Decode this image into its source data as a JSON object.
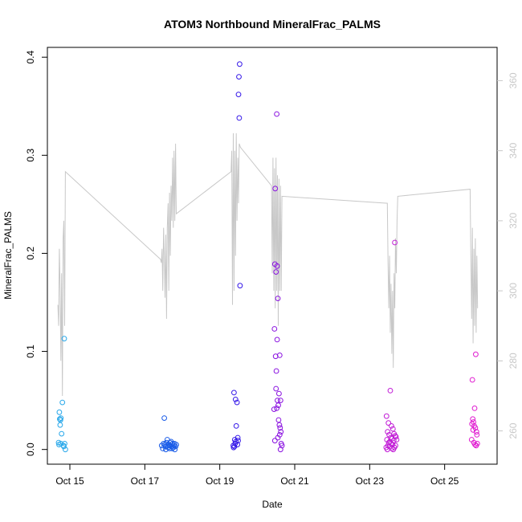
{
  "chart_data": {
    "type": "scatter",
    "title": "ATOM3 Northbound MineralFrac_PALMS",
    "xlabel": "Date",
    "ylabel": "MineralFrac_PALMS",
    "x_unit": "days (Oct 2017)",
    "xlim": [
      14.4,
      26.4
    ],
    "ylim": [
      -0.015,
      0.41
    ],
    "y2lim": [
      250.5,
      369.5
    ],
    "x_tick_labels": [
      "Oct 15",
      "Oct 17",
      "Oct 19",
      "Oct 21",
      "Oct 23",
      "Oct 25"
    ],
    "x_ticks": [
      15,
      17,
      19,
      21,
      23,
      25
    ],
    "y_ticks": [
      0.0,
      0.1,
      0.2,
      0.3,
      0.4
    ],
    "y_tick_labels": [
      "0.0",
      "0.1",
      "0.2",
      "0.3",
      "0.4"
    ],
    "y2_ticks": [
      260,
      280,
      300,
      320,
      340,
      360
    ],
    "y2_tick_labels": [
      "260",
      "280",
      "300",
      "320",
      "340",
      "360"
    ],
    "grid": false,
    "colors": {
      "axis": "#000000",
      "right_axis": "#c8c8c8",
      "line": "#c8c8c8"
    },
    "series": [
      {
        "color": "#29a8ea",
        "points": [
          [
            14.72,
            0.038
          ],
          [
            14.73,
            0.031
          ],
          [
            14.75,
            0.03
          ],
          [
            14.76,
            0.032
          ],
          [
            14.74,
            0.025
          ],
          [
            14.78,
            0.016
          ],
          [
            14.8,
            0.048
          ],
          [
            14.71,
            0.005
          ],
          [
            14.76,
            0.006
          ],
          [
            14.83,
            0.004
          ],
          [
            14.86,
            0.006
          ],
          [
            14.88,
            0.0
          ],
          [
            14.85,
            0.113
          ],
          [
            14.84,
            0.003
          ],
          [
            14.7,
            0.007
          ]
        ]
      },
      {
        "color": "#1a5ce8",
        "points": [
          [
            17.52,
            0.032
          ],
          [
            17.45,
            0.004
          ],
          [
            17.5,
            0.006
          ],
          [
            17.55,
            0.003
          ],
          [
            17.58,
            0.007
          ],
          [
            17.6,
            0.01
          ],
          [
            17.62,
            0.002
          ],
          [
            17.64,
            0.005
          ],
          [
            17.66,
            0.001
          ],
          [
            17.68,
            0.004
          ],
          [
            17.7,
            0.008
          ],
          [
            17.72,
            0.003
          ],
          [
            17.74,
            0.006
          ],
          [
            17.76,
            0.002
          ],
          [
            17.78,
            0.004
          ],
          [
            17.8,
            0.0
          ],
          [
            17.82,
            0.003
          ],
          [
            17.84,
            0.005
          ],
          [
            17.48,
            0.001
          ],
          [
            17.56,
            0.0
          ],
          [
            17.61,
            0.004
          ],
          [
            17.67,
            0.007
          ],
          [
            17.73,
            0.001
          ],
          [
            17.79,
            0.006
          ],
          [
            17.53,
            0.005
          ]
        ]
      },
      {
        "color": "#3518e8",
        "points": [
          [
            19.53,
            0.393
          ],
          [
            19.51,
            0.38
          ],
          [
            19.5,
            0.362
          ],
          [
            19.52,
            0.338
          ],
          [
            19.54,
            0.167
          ],
          [
            19.38,
            0.058
          ],
          [
            19.42,
            0.051
          ],
          [
            19.46,
            0.048
          ],
          [
            19.44,
            0.024
          ],
          [
            19.4,
            0.01
          ],
          [
            19.48,
            0.012
          ],
          [
            19.36,
            0.004
          ],
          [
            19.39,
            0.003
          ],
          [
            19.41,
            0.006
          ],
          [
            19.43,
            0.008
          ],
          [
            19.37,
            0.002
          ],
          [
            19.47,
            0.005
          ],
          [
            19.49,
            0.009
          ]
        ]
      },
      {
        "color": "#8a12e0",
        "points": [
          [
            20.52,
            0.342
          ],
          [
            20.48,
            0.266
          ],
          [
            20.47,
            0.189
          ],
          [
            20.5,
            0.181
          ],
          [
            20.53,
            0.187
          ],
          [
            20.55,
            0.154
          ],
          [
            20.46,
            0.123
          ],
          [
            20.53,
            0.112
          ],
          [
            20.49,
            0.095
          ],
          [
            20.6,
            0.096
          ],
          [
            20.51,
            0.08
          ],
          [
            20.5,
            0.062
          ],
          [
            20.58,
            0.057
          ],
          [
            20.54,
            0.05
          ],
          [
            20.62,
            0.05
          ],
          [
            20.56,
            0.045
          ],
          [
            20.52,
            0.042
          ],
          [
            20.45,
            0.041
          ],
          [
            20.57,
            0.03
          ],
          [
            20.59,
            0.025
          ],
          [
            20.61,
            0.022
          ],
          [
            20.63,
            0.018
          ],
          [
            20.6,
            0.015
          ],
          [
            20.55,
            0.012
          ],
          [
            20.47,
            0.009
          ],
          [
            20.64,
            0.006
          ],
          [
            20.66,
            0.004
          ],
          [
            20.62,
            0.0
          ]
        ]
      },
      {
        "color": "#c11cd6",
        "points": [
          [
            23.67,
            0.211
          ],
          [
            23.55,
            0.06
          ],
          [
            23.45,
            0.034
          ],
          [
            23.5,
            0.027
          ],
          [
            23.58,
            0.024
          ],
          [
            23.62,
            0.021
          ],
          [
            23.48,
            0.018
          ],
          [
            23.65,
            0.016
          ],
          [
            23.52,
            0.015
          ],
          [
            23.7,
            0.013
          ],
          [
            23.56,
            0.012
          ],
          [
            23.6,
            0.011
          ],
          [
            23.46,
            0.01
          ],
          [
            23.64,
            0.009
          ],
          [
            23.68,
            0.014
          ],
          [
            23.72,
            0.01
          ],
          [
            23.54,
            0.008
          ],
          [
            23.57,
            0.006
          ],
          [
            23.61,
            0.005
          ],
          [
            23.49,
            0.004
          ],
          [
            23.53,
            0.003
          ],
          [
            23.66,
            0.002
          ],
          [
            23.44,
            0.002
          ],
          [
            23.59,
            0.001
          ],
          [
            23.47,
            0.0
          ],
          [
            23.63,
            0.0
          ],
          [
            23.51,
            0.007
          ],
          [
            23.69,
            0.004
          ]
        ]
      },
      {
        "color": "#e01ad0",
        "points": [
          [
            25.83,
            0.097
          ],
          [
            25.74,
            0.071
          ],
          [
            25.8,
            0.042
          ],
          [
            25.75,
            0.031
          ],
          [
            25.77,
            0.028
          ],
          [
            25.73,
            0.026
          ],
          [
            25.79,
            0.024
          ],
          [
            25.82,
            0.022
          ],
          [
            25.85,
            0.018
          ],
          [
            25.86,
            0.015
          ],
          [
            25.76,
            0.02
          ],
          [
            25.72,
            0.01
          ],
          [
            25.78,
            0.007
          ],
          [
            25.81,
            0.005
          ],
          [
            25.84,
            0.004
          ],
          [
            25.87,
            0.006
          ]
        ]
      }
    ],
    "line_secondary_axis": [
      [
        14.68,
        296
      ],
      [
        14.7,
        290
      ],
      [
        14.72,
        312
      ],
      [
        14.74,
        300
      ],
      [
        14.76,
        280
      ],
      [
        14.78,
        305
      ],
      [
        14.8,
        270
      ],
      [
        14.82,
        315
      ],
      [
        14.84,
        320
      ],
      [
        14.86,
        290
      ],
      [
        14.88,
        334
      ],
      [
        17.42,
        309
      ],
      [
        17.44,
        308
      ],
      [
        17.46,
        312
      ],
      [
        17.48,
        300
      ],
      [
        17.5,
        318
      ],
      [
        17.52,
        310
      ],
      [
        17.54,
        298
      ],
      [
        17.56,
        316
      ],
      [
        17.58,
        292
      ],
      [
        17.6,
        318
      ],
      [
        17.62,
        325
      ],
      [
        17.64,
        300
      ],
      [
        17.66,
        328
      ],
      [
        17.68,
        310
      ],
      [
        17.7,
        330
      ],
      [
        17.72,
        320
      ],
      [
        17.74,
        338
      ],
      [
        17.76,
        318
      ],
      [
        17.78,
        340
      ],
      [
        17.8,
        320
      ],
      [
        17.82,
        342
      ],
      [
        17.84,
        322
      ],
      [
        19.3,
        334
      ],
      [
        19.32,
        340
      ],
      [
        19.34,
        296
      ],
      [
        19.36,
        345
      ],
      [
        19.38,
        300
      ],
      [
        19.4,
        340
      ],
      [
        19.42,
        310
      ],
      [
        19.44,
        345
      ],
      [
        19.46,
        320
      ],
      [
        19.48,
        338
      ],
      [
        19.5,
        325
      ],
      [
        19.52,
        342
      ],
      [
        19.55,
        341
      ],
      [
        20.38,
        330
      ],
      [
        20.4,
        305
      ],
      [
        20.42,
        338
      ],
      [
        20.44,
        300
      ],
      [
        20.46,
        335
      ],
      [
        20.48,
        295
      ],
      [
        20.5,
        338
      ],
      [
        20.52,
        300
      ],
      [
        20.54,
        333
      ],
      [
        20.56,
        290
      ],
      [
        20.58,
        332
      ],
      [
        20.6,
        300
      ],
      [
        20.62,
        330
      ],
      [
        20.64,
        300
      ],
      [
        20.66,
        327
      ],
      [
        23.47,
        325
      ],
      [
        23.49,
        308
      ],
      [
        23.51,
        295
      ],
      [
        23.53,
        310
      ],
      [
        23.55,
        288
      ],
      [
        23.57,
        302
      ],
      [
        23.59,
        282
      ],
      [
        23.61,
        300
      ],
      [
        23.63,
        278
      ],
      [
        23.65,
        305
      ],
      [
        23.67,
        295
      ],
      [
        23.69,
        315
      ],
      [
        23.71,
        305
      ],
      [
        23.73,
        320
      ],
      [
        23.75,
        327
      ],
      [
        25.68,
        329
      ],
      [
        25.7,
        310
      ],
      [
        25.72,
        292
      ],
      [
        25.74,
        318
      ],
      [
        25.76,
        285
      ],
      [
        25.78,
        312
      ],
      [
        25.8,
        290
      ],
      [
        25.82,
        315
      ],
      [
        25.84,
        288
      ],
      [
        25.86,
        310
      ],
      [
        25.88,
        295
      ]
    ]
  }
}
